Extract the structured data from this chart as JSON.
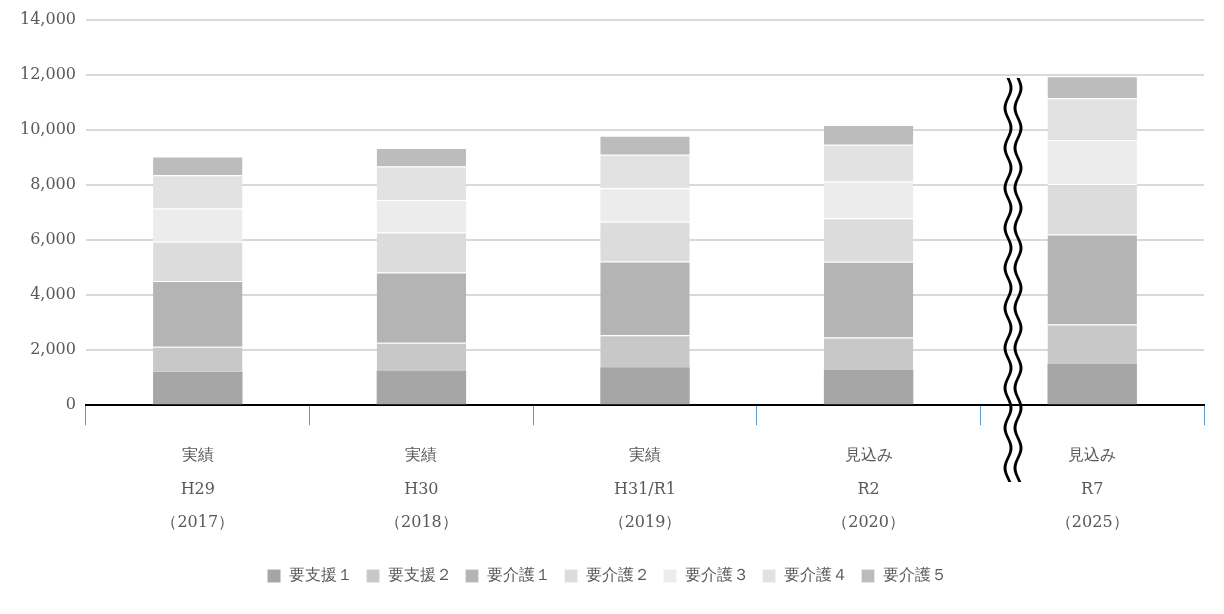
{
  "chart_data": {
    "type": "bar",
    "stacked": true,
    "categories": [
      "実績\nH29\n（2017）",
      "実績\nH30\n（2018）",
      "実績\nH31/R1\n（2019）",
      "見込み\nR2\n（2020）",
      "見込み\nR7\n（2025）"
    ],
    "series": [
      {
        "name": "要支援１",
        "color": "#a6a6a6",
        "values": [
          1210,
          1240,
          1380,
          1300,
          1500
        ]
      },
      {
        "name": "要支援２",
        "color": "#c8c8c8",
        "values": [
          910,
          1030,
          1160,
          1160,
          1430
        ]
      },
      {
        "name": "要介護１",
        "color": "#b4b4b4",
        "values": [
          2390,
          2550,
          2680,
          2750,
          3270
        ]
      },
      {
        "name": "要介護２",
        "color": "#dcdcdc",
        "values": [
          1420,
          1450,
          1440,
          1580,
          1830
        ]
      },
      {
        "name": "要介護３",
        "color": "#ececec",
        "values": [
          1210,
          1180,
          1220,
          1330,
          1600
        ]
      },
      {
        "name": "要介護４",
        "color": "#e2e2e2",
        "values": [
          1210,
          1220,
          1210,
          1340,
          1510
        ]
      },
      {
        "name": "要介護５",
        "color": "#bcbcbc",
        "values": [
          680,
          670,
          690,
          710,
          800
        ]
      }
    ],
    "ylim": [
      0,
      14000
    ],
    "yticks": [
      0,
      {
        "value": 2000,
        "label": "2,000"
      },
      {
        "value": 4000,
        "label": "4,000"
      },
      {
        "value": 6000,
        "label": "6,000"
      },
      {
        "value": 8000,
        "label": "8,000"
      },
      {
        "value": 10000,
        "label": "10,000"
      },
      {
        "value": 12000,
        "label": "12,000"
      },
      {
        "value": 14000,
        "label": "14,000"
      }
    ],
    "grid": "y",
    "legend": "bottom"
  }
}
